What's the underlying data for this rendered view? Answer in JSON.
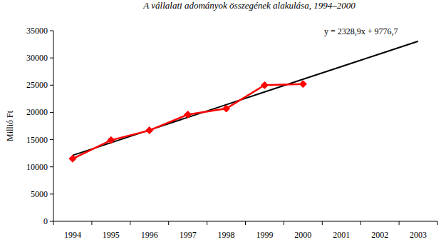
{
  "chart_data": {
    "type": "line",
    "title": "A vállalati adományok összegének alakulása, 1994–2000",
    "y_label": "Millió Ft",
    "annotation": "y = 2328,9x + 9776,7",
    "categories": [
      "1994",
      "1995",
      "1996",
      "1997",
      "1998",
      "1999",
      "2000",
      "2001",
      "2002",
      "2003"
    ],
    "series": [
      {
        "color": "#ff0000",
        "marker": "diamond",
        "line_style": "solid",
        "values": [
          11500,
          14900,
          16700,
          19600,
          20700,
          25000,
          25200,
          null,
          null,
          null
        ]
      },
      {
        "color": "#000000",
        "marker": "none",
        "line_style": "solid",
        "values": [
          12105.6,
          14434.5,
          16763.4,
          19092.3,
          21421.2,
          23750.1,
          26079,
          28407.9,
          30736.8,
          33065.7
        ]
      }
    ],
    "ylim": [
      0,
      35000
    ],
    "yticks": [
      0,
      5000,
      10000,
      15000,
      20000,
      25000,
      30000,
      35000
    ],
    "grid": false
  }
}
